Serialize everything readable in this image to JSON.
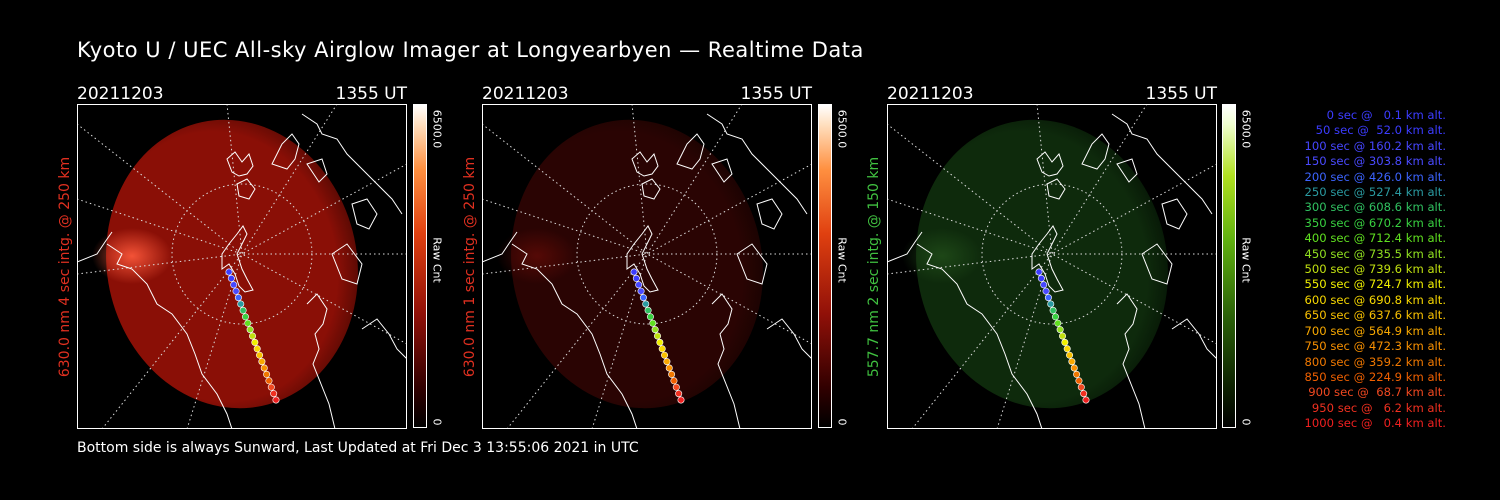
{
  "title": "Kyoto U / UEC All-sky Airglow Imager at Longyearbyen — Realtime Data",
  "panels": [
    {
      "date": "20211203",
      "time": "1355 UT",
      "label": "630.0 nm 4 sec intg. @ 250 km",
      "label_color": "#e03020",
      "cmax": "6500.0",
      "cmin": "0",
      "unit": "Raw Cnt",
      "glow": "#8a0f06",
      "glow_edge": "#5e0a04",
      "glow_opacity": 1.0,
      "hot": "#ff5a3c"
    },
    {
      "date": "20211203",
      "time": "1355 UT",
      "label": "630.0 nm 1 sec intg. @ 250 km",
      "label_color": "#e03020",
      "cmax": "6500.0",
      "cmin": "0",
      "unit": "Raw Cnt",
      "glow": "#2a0403",
      "glow_edge": "#1c0302",
      "glow_opacity": 1.0,
      "hot": "#5a0a06"
    },
    {
      "date": "20211203",
      "time": "1355 UT",
      "label": "557.7 nm 2 sec intg. @ 150 km",
      "label_color": "#40c040",
      "cmax": "6500.0",
      "cmin": "0",
      "unit": "Raw Cnt",
      "glow": "#0e2a0c",
      "glow_edge": "#081a07",
      "glow_opacity": 1.0,
      "hot": "#1f4a18"
    }
  ],
  "trajectory": [
    {
      "text": "0 sec @   0.1 km alt.",
      "color": "#3c3cff"
    },
    {
      "text": "50 sec @  52.0 km alt.",
      "color": "#3c3cff"
    },
    {
      "text": "100 sec @ 160.2 km alt.",
      "color": "#4646ff"
    },
    {
      "text": "150 sec @ 303.8 km alt.",
      "color": "#4a4aff"
    },
    {
      "text": "200 sec @ 426.0 km alt.",
      "color": "#3c64ff"
    },
    {
      "text": "250 sec @ 527.4 km alt.",
      "color": "#2a9aa0"
    },
    {
      "text": "300 sec @ 608.6 km alt.",
      "color": "#30c060"
    },
    {
      "text": "350 sec @ 670.2 km alt.",
      "color": "#38d040"
    },
    {
      "text": "400 sec @ 712.4 km alt.",
      "color": "#60e020"
    },
    {
      "text": "450 sec @ 735.5 km alt.",
      "color": "#90e020"
    },
    {
      "text": "500 sec @ 739.6 km alt.",
      "color": "#c0e010"
    },
    {
      "text": "550 sec @ 724.7 km alt.",
      "color": "#f0f000"
    },
    {
      "text": "600 sec @ 690.8 km alt.",
      "color": "#f8d800"
    },
    {
      "text": "650 sec @ 637.6 km alt.",
      "color": "#f8c000"
    },
    {
      "text": "700 sec @ 564.9 km alt.",
      "color": "#f8a800"
    },
    {
      "text": "750 sec @ 472.3 km alt.",
      "color": "#f89000"
    },
    {
      "text": "800 sec @ 359.2 km alt.",
      "color": "#f07800"
    },
    {
      "text": "850 sec @ 224.9 km alt.",
      "color": "#f06000"
    },
    {
      "text": "900 sec @  68.7 km alt.",
      "color": "#f04820"
    },
    {
      "text": "950 sec @   6.2 km alt.",
      "color": "#f03020"
    },
    {
      "text": "1000 sec @   0.4 km alt.",
      "color": "#f02020"
    }
  ],
  "footer": "Bottom side is always Sunward, Last Updated at Fri Dec  3 13:55:06 2021 in UTC"
}
